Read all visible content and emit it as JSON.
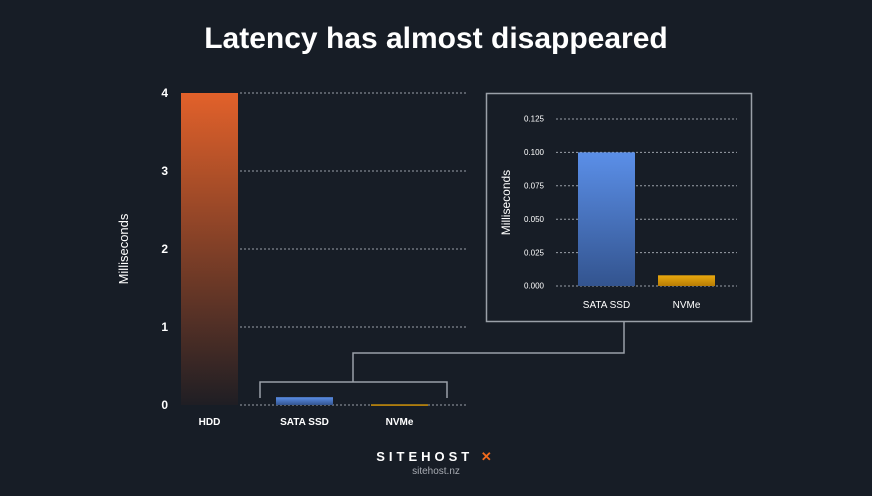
{
  "chart_data": [
    {
      "type": "bar",
      "title": "Latency has almost disappeared",
      "ylabel": "Milliseconds",
      "xlabel": "",
      "categories": [
        "HDD",
        "SATA SSD",
        "NVMe"
      ],
      "values": [
        4,
        0.1,
        0.008
      ],
      "ylim": [
        0,
        4
      ],
      "yticks": [
        "0",
        "1",
        "2",
        "3",
        "4"
      ],
      "grid": true,
      "colors": [
        "#e2612a",
        "#5b8fe8",
        "#e8a80c"
      ]
    },
    {
      "type": "bar",
      "ylabel": "Milliseconds",
      "xlabel": "",
      "categories": [
        "SATA SSD",
        "NVMe"
      ],
      "values": [
        0.1,
        0.008
      ],
      "ylim": [
        0,
        0.125
      ],
      "yticks": [
        "0.000",
        "0.025",
        "0.050",
        "0.075",
        "0.100",
        "0.125"
      ],
      "grid": true,
      "colors": [
        "#5b8fe8",
        "#e8a80c"
      ]
    }
  ],
  "logo": {
    "name": "SITEHOST",
    "mark": "✕",
    "url": "sitehost.nz"
  }
}
